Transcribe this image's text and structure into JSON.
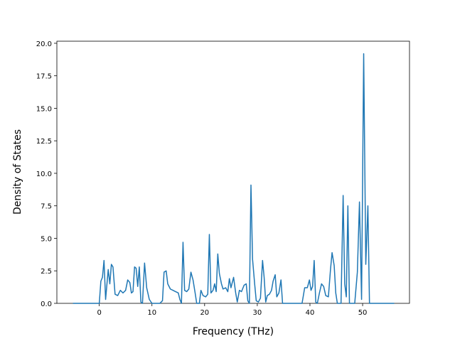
{
  "chart_data": {
    "type": "line",
    "xlabel": "Frequency (THz)",
    "ylabel": "Density of States",
    "color": "#1f77b4",
    "x": [
      -5,
      -1,
      0,
      0.3,
      0.6,
      0.9,
      1.2,
      1.7,
      2.0,
      2.3,
      2.6,
      3.0,
      3.5,
      4.0,
      4.5,
      5.0,
      5.4,
      5.8,
      6.1,
      6.4,
      6.7,
      7.0,
      7.3,
      7.6,
      7.9,
      8.2,
      8.6,
      9.0,
      9.5,
      10,
      11.5,
      12,
      12.3,
      12.7,
      13.0,
      13.5,
      14,
      14.5,
      15,
      15.3,
      15.6,
      15.9,
      16.2,
      16.6,
      17.0,
      17.4,
      17.8,
      18.2,
      18.5,
      19,
      19.3,
      19.7,
      20.2,
      20.6,
      20.9,
      21.2,
      21.6,
      21.9,
      22.2,
      22.5,
      22.8,
      23.2,
      23.5,
      24,
      24.4,
      24.7,
      25.0,
      25.5,
      25.9,
      26.2,
      26.6,
      27.0,
      27.5,
      27.9,
      28.2,
      28.5,
      28.8,
      29.1,
      29.5,
      29.8,
      30.2,
      30.6,
      31.0,
      31.3,
      31.6,
      31.9,
      32.3,
      32.7,
      33.0,
      33.4,
      33.7,
      34.1,
      34.5,
      34.8,
      38.5,
      39,
      39.5,
      39.9,
      40.2,
      40.5,
      40.8,
      41.1,
      41.4,
      41.8,
      42.2,
      42.6,
      43,
      43.5,
      43.9,
      44.2,
      44.6,
      44.9,
      45.2,
      45.9,
      46.3,
      46.6,
      46.9,
      47.2,
      47.5,
      48.5,
      49.0,
      49.4,
      49.8,
      50.2,
      50.6,
      51.0,
      51.3,
      56
    ],
    "values": [
      0,
      0,
      0,
      1.7,
      2.0,
      3.3,
      0.3,
      2.6,
      1.5,
      3.0,
      2.8,
      0.7,
      0.6,
      1.0,
      0.8,
      1.0,
      1.8,
      1.6,
      0.8,
      0.9,
      2.8,
      2.7,
      1.3,
      2.8,
      0.1,
      0,
      3.1,
      1.2,
      0.3,
      0,
      0,
      0.2,
      2.4,
      2.5,
      1.5,
      1.1,
      1.0,
      0.9,
      0.8,
      0.3,
      0,
      4.7,
      1.0,
      0.9,
      1.1,
      2.4,
      1.8,
      0.8,
      0,
      0,
      1.0,
      0.6,
      0.5,
      0.7,
      5.3,
      0.8,
      1.0,
      1.5,
      0.9,
      3.8,
      2.3,
      1.5,
      1.1,
      1.2,
      0.9,
      1.9,
      1.2,
      2.0,
      0.8,
      0.1,
      1.0,
      0.9,
      1.4,
      1.5,
      0.2,
      0,
      9.1,
      3.4,
      1.5,
      0.2,
      0.1,
      0.4,
      3.3,
      2.0,
      0.1,
      0.6,
      0.7,
      1.0,
      1.7,
      2.2,
      0.5,
      0.8,
      1.8,
      0,
      0,
      1.2,
      1.2,
      1.8,
      1.0,
      1.3,
      3.3,
      0.1,
      0,
      0.8,
      1.5,
      1.3,
      0.6,
      0.5,
      2.6,
      3.9,
      2.9,
      0.8,
      0,
      0,
      8.3,
      1.5,
      0.5,
      7.5,
      0,
      0,
      2.4,
      7.8,
      0.3,
      19.2,
      3.0,
      7.5,
      0,
      0
    ],
    "xlim": [
      -8.05,
      58.9
    ],
    "ylim": [
      0,
      20.16
    ],
    "xticks": [
      0,
      10,
      20,
      30,
      40,
      50
    ],
    "yticks": [
      {
        "value": 0,
        "label": "0.0"
      },
      {
        "value": 2.5,
        "label": "2.5"
      },
      {
        "value": 5,
        "label": "5.0"
      },
      {
        "value": 7.5,
        "label": "7.5"
      },
      {
        "value": 10,
        "label": "10.0"
      },
      {
        "value": 12.5,
        "label": "12.5"
      },
      {
        "value": 15,
        "label": "15.0"
      },
      {
        "value": 17.5,
        "label": "17.5"
      },
      {
        "value": 20,
        "label": "20.0"
      }
    ]
  }
}
